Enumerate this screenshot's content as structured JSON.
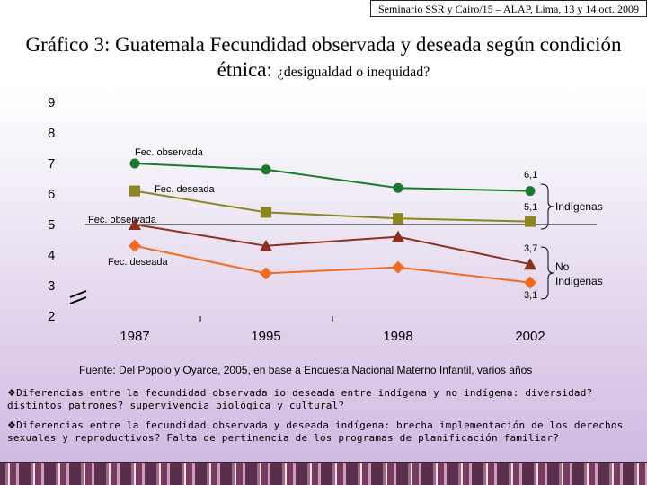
{
  "header": {
    "text": "Seminario SSR y Cairo/15 – ALAP, Lima, 13 y 14 oct. 2009"
  },
  "title": {
    "line1": "Gráfico 3: Guatemala Fecundidad observada y deseada según condición",
    "line2_main": "étnica: ",
    "line2_small": "¿desigualdad o inequidad?"
  },
  "chart_data": {
    "type": "line",
    "categories": [
      "1987",
      "1995",
      "1998",
      "2002"
    ],
    "ytick_labels": [
      "2",
      "3",
      "4",
      "5",
      "6",
      "7",
      "8",
      "9"
    ],
    "ylim": [
      2,
      9
    ],
    "series": [
      {
        "name": "Fec. observada",
        "group": "Indígenas",
        "values": [
          7.0,
          6.8,
          6.2,
          6.1
        ],
        "color": "#1a7a2e",
        "marker": "circle",
        "end_label": "6,1"
      },
      {
        "name": "Fec. deseada",
        "group": "Indígenas",
        "values": [
          6.1,
          5.4,
          5.2,
          5.1
        ],
        "color": "#8c8520",
        "marker": "square",
        "end_label": "5,1"
      },
      {
        "name": "Fec. observada",
        "group": "No Indígenas",
        "values": [
          5.0,
          4.3,
          4.6,
          3.7
        ],
        "color": "#8b2f1e",
        "marker": "triangle",
        "end_label": "3,7"
      },
      {
        "name": "Fec. deseada",
        "group": "No Indígenas",
        "values": [
          4.3,
          3.4,
          3.6,
          3.1
        ],
        "color": "#f06a20",
        "marker": "diamond",
        "end_label": "3,1"
      }
    ],
    "reference_line": {
      "value": 5.0
    },
    "groups": [
      {
        "label": "Indígenas"
      },
      {
        "label_line1": "No",
        "label_line2": "Indígenas"
      }
    ]
  },
  "source": "Fuente: Del Popolo y Oyarce, 2005, en base a  Encuesta Nacional Materno Infantil, varios años",
  "bullets": [
    "Diferencias entre la fecundidad observada io deseada entre indígena y no indígena: diversidad? distintos patrones? supervivencia biológica y cultural?",
    "Diferencias entre la fecundidad observada y deseada indígena: brecha implementación de los derechos sexuales y reproductivos? Falta de pertinencia de los programas de planificación familiar?"
  ],
  "bullet_mark": "❖"
}
